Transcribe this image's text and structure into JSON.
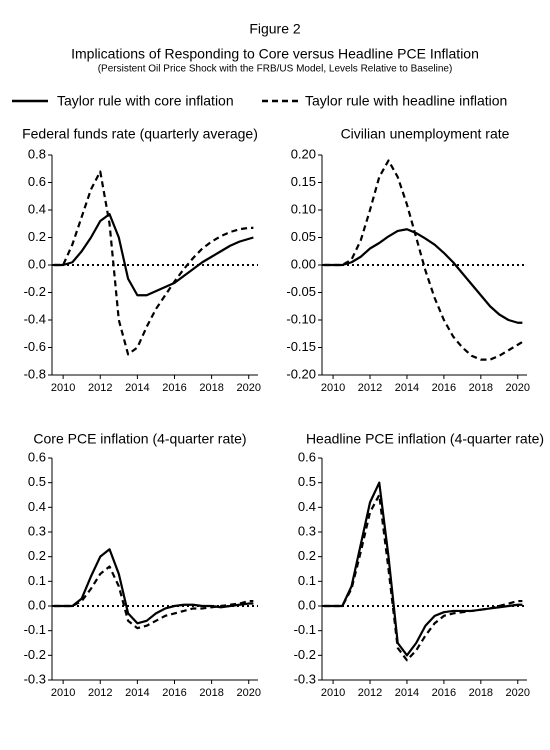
{
  "header": {
    "figure_label": "Figure 2",
    "title": "Implications of Responding to Core versus Headline PCE Inflation",
    "subtitle": "(Persistent Oil Price Shock with the FRB/US Model, Levels Relative to Baseline)"
  },
  "chart_data": [
    {
      "type": "line",
      "title": "Federal funds rate (quarterly average)",
      "x": [
        2009.5,
        2010,
        2010.5,
        2011,
        2011.5,
        2012,
        2012.5,
        2013,
        2013.5,
        2014,
        2014.5,
        2015,
        2015.5,
        2016,
        2016.5,
        2017,
        2017.5,
        2018,
        2018.5,
        2019,
        2019.5,
        2020,
        2020.25
      ],
      "xlim": [
        2009.4,
        2020.5
      ],
      "xticks": [
        2010,
        2012,
        2014,
        2016,
        2018,
        2020
      ],
      "ylim": [
        -0.8,
        0.8
      ],
      "yticks": [
        0.8,
        0.6,
        0.4,
        0.2,
        {
          "value": 0,
          "label": "0.0"
        },
        -0.2,
        -0.4,
        -0.6,
        -0.8
      ],
      "series": [
        {
          "name": "Taylor rule with core inflation",
          "color": "#000000",
          "line_style": "solid",
          "values": [
            0,
            0,
            0.02,
            0.1,
            0.2,
            0.32,
            0.37,
            0.2,
            -0.1,
            -0.22,
            -0.22,
            -0.19,
            -0.16,
            -0.13,
            -0.08,
            -0.03,
            0.02,
            0.06,
            0.1,
            0.14,
            0.17,
            0.19,
            0.2
          ]
        },
        {
          "name": "Taylor rule with headline inflation",
          "color": "#000000",
          "line_style": "dashed",
          "values": [
            0,
            0,
            0.15,
            0.35,
            0.55,
            0.68,
            0.3,
            -0.4,
            -0.65,
            -0.6,
            -0.45,
            -0.32,
            -0.22,
            -0.12,
            -0.03,
            0.05,
            0.12,
            0.17,
            0.21,
            0.24,
            0.26,
            0.27,
            0.27
          ]
        }
      ]
    },
    {
      "type": "line",
      "title": "Civilian unemployment rate",
      "x": [
        2009.5,
        2010,
        2010.5,
        2011,
        2011.5,
        2012,
        2012.5,
        2013,
        2013.5,
        2014,
        2014.5,
        2015,
        2015.5,
        2016,
        2016.5,
        2017,
        2017.5,
        2018,
        2018.5,
        2019,
        2019.5,
        2020,
        2020.25
      ],
      "xlim": [
        2009.4,
        2020.5
      ],
      "xticks": [
        2010,
        2012,
        2014,
        2016,
        2018,
        2020
      ],
      "ylim": [
        -0.2,
        0.2
      ],
      "yticks": [
        {
          "value": 0.2,
          "label": "0.20"
        },
        0.15,
        {
          "value": 0.1,
          "label": "0.10"
        },
        0.05,
        {
          "value": 0,
          "label": "0.00"
        },
        -0.05,
        {
          "value": -0.1,
          "label": "-0.10"
        },
        -0.15,
        {
          "value": -0.2,
          "label": "-0.20"
        }
      ],
      "series": [
        {
          "name": "Taylor rule with core inflation",
          "color": "#000000",
          "line_style": "solid",
          "values": [
            0,
            0,
            0,
            0.005,
            0.015,
            0.03,
            0.04,
            0.052,
            0.062,
            0.065,
            0.058,
            0.048,
            0.037,
            0.022,
            0.005,
            -0.015,
            -0.035,
            -0.055,
            -0.075,
            -0.09,
            -0.1,
            -0.105,
            -0.105
          ]
        },
        {
          "name": "Taylor rule with headline inflation",
          "color": "#000000",
          "line_style": "dashed",
          "values": [
            0,
            0,
            0,
            0.01,
            0.045,
            0.1,
            0.16,
            0.19,
            0.16,
            0.11,
            0.05,
            -0.01,
            -0.06,
            -0.1,
            -0.13,
            -0.15,
            -0.165,
            -0.172,
            -0.172,
            -0.165,
            -0.155,
            -0.145,
            -0.14
          ]
        }
      ]
    },
    {
      "type": "line",
      "title": "Core PCE inflation (4-quarter rate)",
      "x": [
        2009.5,
        2010,
        2010.5,
        2011,
        2011.5,
        2012,
        2012.5,
        2013,
        2013.5,
        2014,
        2014.5,
        2015,
        2015.5,
        2016,
        2016.5,
        2017,
        2017.5,
        2018,
        2018.5,
        2019,
        2019.5,
        2020,
        2020.25
      ],
      "xlim": [
        2009.4,
        2020.5
      ],
      "xticks": [
        2010,
        2012,
        2014,
        2016,
        2018,
        2020
      ],
      "ylim": [
        -0.3,
        0.6
      ],
      "yticks": [
        0.6,
        0.5,
        0.4,
        0.3,
        0.2,
        0.1,
        {
          "value": 0,
          "label": "0.0"
        },
        -0.1,
        -0.2,
        -0.3
      ],
      "series": [
        {
          "name": "Taylor rule with core inflation",
          "color": "#000000",
          "line_style": "solid",
          "values": [
            0,
            0,
            0,
            0.03,
            0.12,
            0.2,
            0.23,
            0.13,
            -0.03,
            -0.07,
            -0.06,
            -0.03,
            -0.01,
            0,
            0.005,
            0.005,
            0,
            0,
            -0.005,
            0,
            0.005,
            0.01,
            0.01
          ]
        },
        {
          "name": "Taylor rule with headline inflation",
          "color": "#000000",
          "line_style": "dashed",
          "values": [
            0,
            0,
            0,
            0.02,
            0.07,
            0.13,
            0.16,
            0.08,
            -0.06,
            -0.09,
            -0.08,
            -0.06,
            -0.04,
            -0.03,
            -0.02,
            -0.01,
            -0.01,
            -0.005,
            0,
            0.005,
            0.01,
            0.02,
            0.02
          ]
        }
      ]
    },
    {
      "type": "line",
      "title": "Headline PCE inflation (4-quarter rate)",
      "x": [
        2009.5,
        2010,
        2010.5,
        2011,
        2011.5,
        2012,
        2012.5,
        2013,
        2013.5,
        2014,
        2014.5,
        2015,
        2015.5,
        2016,
        2016.5,
        2017,
        2017.5,
        2018,
        2018.5,
        2019,
        2019.5,
        2020,
        2020.25
      ],
      "xlim": [
        2009.4,
        2020.5
      ],
      "xticks": [
        2010,
        2012,
        2014,
        2016,
        2018,
        2020
      ],
      "ylim": [
        -0.3,
        0.6
      ],
      "yticks": [
        0.6,
        0.5,
        0.4,
        0.3,
        0.2,
        0.1,
        {
          "value": 0,
          "label": "0.0"
        },
        -0.1,
        -0.2,
        -0.3
      ],
      "series": [
        {
          "name": "Taylor rule with core inflation",
          "color": "#000000",
          "line_style": "solid",
          "values": [
            0,
            0,
            0,
            0.08,
            0.25,
            0.42,
            0.5,
            0.2,
            -0.15,
            -0.2,
            -0.15,
            -0.08,
            -0.04,
            -0.025,
            -0.02,
            -0.02,
            -0.02,
            -0.015,
            -0.01,
            -0.005,
            0,
            0.005,
            0.005
          ]
        },
        {
          "name": "Taylor rule with headline inflation",
          "color": "#000000",
          "line_style": "dashed",
          "values": [
            0,
            0,
            0,
            0.07,
            0.22,
            0.38,
            0.45,
            0.15,
            -0.17,
            -0.22,
            -0.18,
            -0.12,
            -0.07,
            -0.04,
            -0.03,
            -0.025,
            -0.02,
            -0.015,
            -0.01,
            0,
            0.01,
            0.02,
            0.02
          ]
        }
      ]
    }
  ]
}
